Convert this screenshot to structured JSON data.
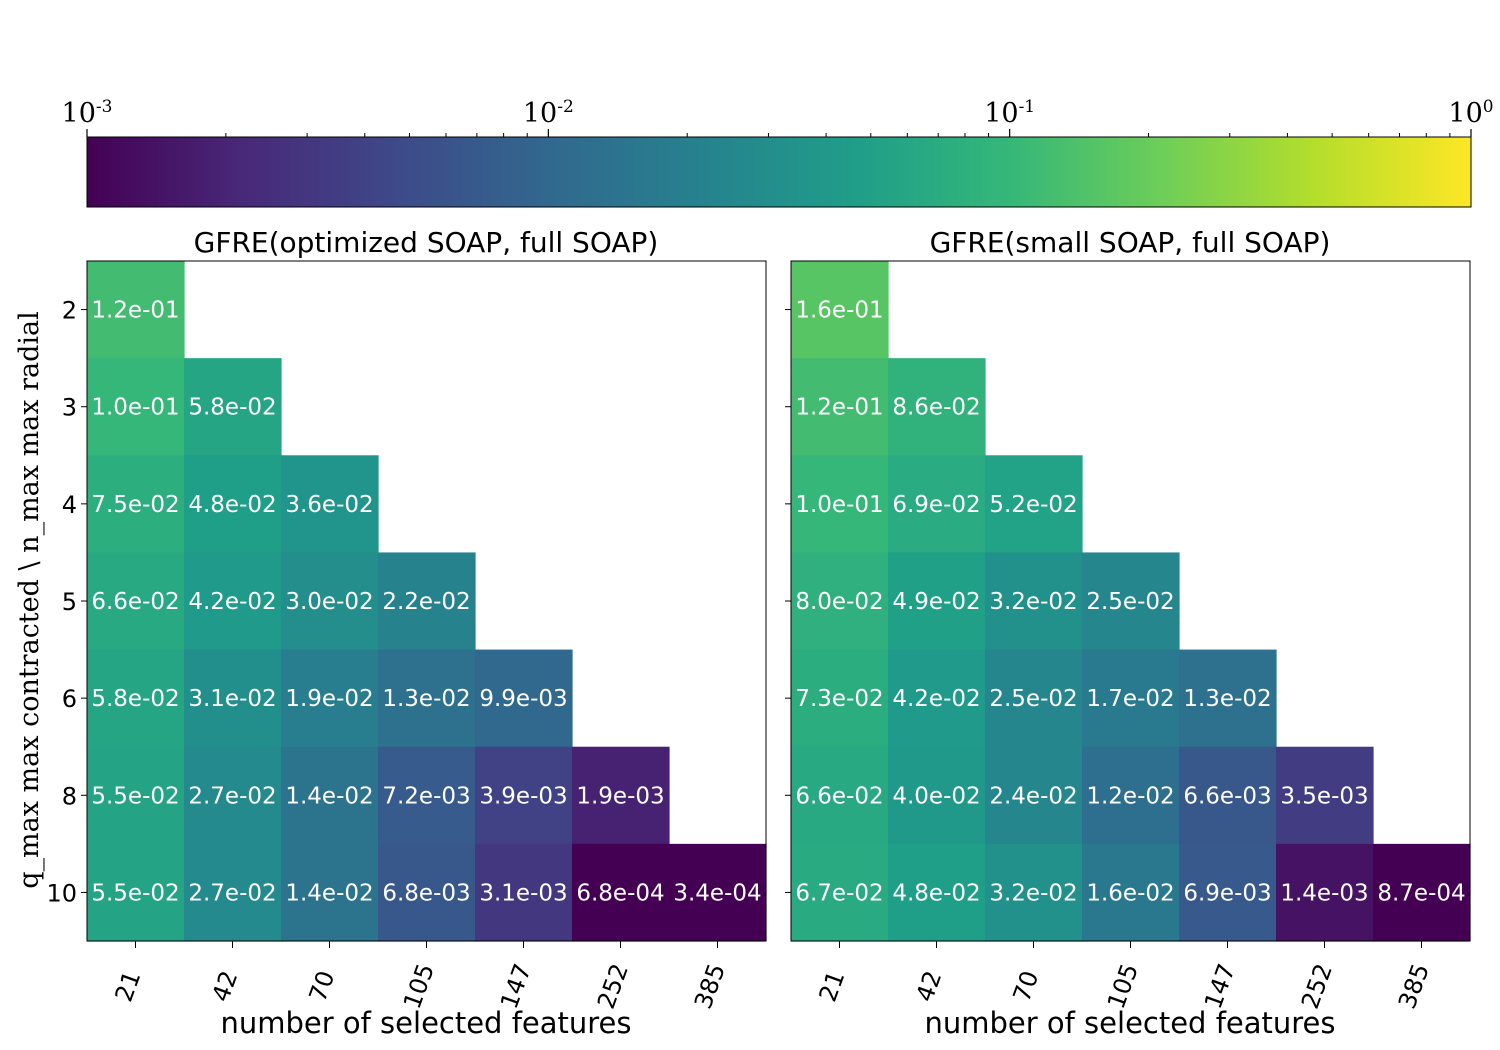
{
  "chart_data": [
    {
      "type": "heatmap",
      "title": "GFRE(optimized SOAP, full SOAP)",
      "xlabel": "number of selected features",
      "ylabel": "q_max  max contracted \\ n_max  max radial",
      "x_categories": [
        "21",
        "42",
        "70",
        "105",
        "147",
        "252",
        "385"
      ],
      "y_categories": [
        "2",
        "3",
        "4",
        "5",
        "6",
        "8",
        "10"
      ],
      "values": [
        [
          0.12,
          null,
          null,
          null,
          null,
          null,
          null
        ],
        [
          0.1,
          0.058,
          null,
          null,
          null,
          null,
          null
        ],
        [
          0.075,
          0.048,
          0.036,
          null,
          null,
          null,
          null
        ],
        [
          0.066,
          0.042,
          0.03,
          0.022,
          null,
          null,
          null
        ],
        [
          0.058,
          0.031,
          0.019,
          0.013,
          0.0099,
          null,
          null
        ],
        [
          0.055,
          0.027,
          0.014,
          0.0072,
          0.0039,
          0.0019,
          null
        ],
        [
          0.055,
          0.027,
          0.014,
          0.0068,
          0.0031,
          0.00068,
          0.00034
        ]
      ],
      "labels": [
        [
          "1.2e-01",
          "",
          "",
          "",
          "",
          "",
          ""
        ],
        [
          "1.0e-01",
          "5.8e-02",
          "",
          "",
          "",
          "",
          ""
        ],
        [
          "7.5e-02",
          "4.8e-02",
          "3.6e-02",
          "",
          "",
          "",
          ""
        ],
        [
          "6.6e-02",
          "4.2e-02",
          "3.0e-02",
          "2.2e-02",
          "",
          "",
          ""
        ],
        [
          "5.8e-02",
          "3.1e-02",
          "1.9e-02",
          "1.3e-02",
          "9.9e-03",
          "",
          ""
        ],
        [
          "5.5e-02",
          "2.7e-02",
          "1.4e-02",
          "7.2e-03",
          "3.9e-03",
          "1.9e-03",
          ""
        ],
        [
          "5.5e-02",
          "2.7e-02",
          "1.4e-02",
          "6.8e-03",
          "3.1e-03",
          "6.8e-04",
          "3.4e-04"
        ]
      ]
    },
    {
      "type": "heatmap",
      "title": "GFRE(small SOAP, full SOAP)",
      "xlabel": "number of selected features",
      "x_categories": [
        "21",
        "42",
        "70",
        "105",
        "147",
        "252",
        "385"
      ],
      "y_categories": [
        "2",
        "3",
        "4",
        "5",
        "6",
        "8",
        "10"
      ],
      "values": [
        [
          0.16,
          null,
          null,
          null,
          null,
          null,
          null
        ],
        [
          0.12,
          0.086,
          null,
          null,
          null,
          null,
          null
        ],
        [
          0.1,
          0.069,
          0.052,
          null,
          null,
          null,
          null
        ],
        [
          0.08,
          0.049,
          0.032,
          0.025,
          null,
          null,
          null
        ],
        [
          0.073,
          0.042,
          0.025,
          0.017,
          0.013,
          null,
          null
        ],
        [
          0.066,
          0.04,
          0.024,
          0.012,
          0.0066,
          0.0035,
          null
        ],
        [
          0.067,
          0.048,
          0.032,
          0.016,
          0.0069,
          0.0014,
          0.00087
        ]
      ],
      "labels": [
        [
          "1.6e-01",
          "",
          "",
          "",
          "",
          "",
          ""
        ],
        [
          "1.2e-01",
          "8.6e-02",
          "",
          "",
          "",
          "",
          ""
        ],
        [
          "1.0e-01",
          "6.9e-02",
          "5.2e-02",
          "",
          "",
          "",
          ""
        ],
        [
          "8.0e-02",
          "4.9e-02",
          "3.2e-02",
          "2.5e-02",
          "",
          "",
          ""
        ],
        [
          "7.3e-02",
          "4.2e-02",
          "2.5e-02",
          "1.7e-02",
          "1.3e-02",
          "",
          ""
        ],
        [
          "6.6e-02",
          "4.0e-02",
          "2.4e-02",
          "1.2e-02",
          "6.6e-03",
          "3.5e-03",
          ""
        ],
        [
          "6.7e-02",
          "4.8e-02",
          "3.2e-02",
          "1.6e-02",
          "6.9e-03",
          "1.4e-03",
          "8.7e-04"
        ]
      ]
    }
  ],
  "colorbar": {
    "scale": "log",
    "range": [
      0.001,
      1
    ],
    "ticks": [
      {
        "value": 0.001,
        "base": "10",
        "exp": "-3"
      },
      {
        "value": 0.01,
        "base": "10",
        "exp": "-2"
      },
      {
        "value": 0.1,
        "base": "10",
        "exp": "-1"
      },
      {
        "value": 1,
        "base": "10",
        "exp": "0"
      }
    ],
    "colormap": "viridis",
    "stops": [
      "#440154",
      "#482878",
      "#3e4989",
      "#31688e",
      "#26828e",
      "#1f9e89",
      "#35b779",
      "#6ece58",
      "#b5de2b",
      "#fde725"
    ]
  }
}
